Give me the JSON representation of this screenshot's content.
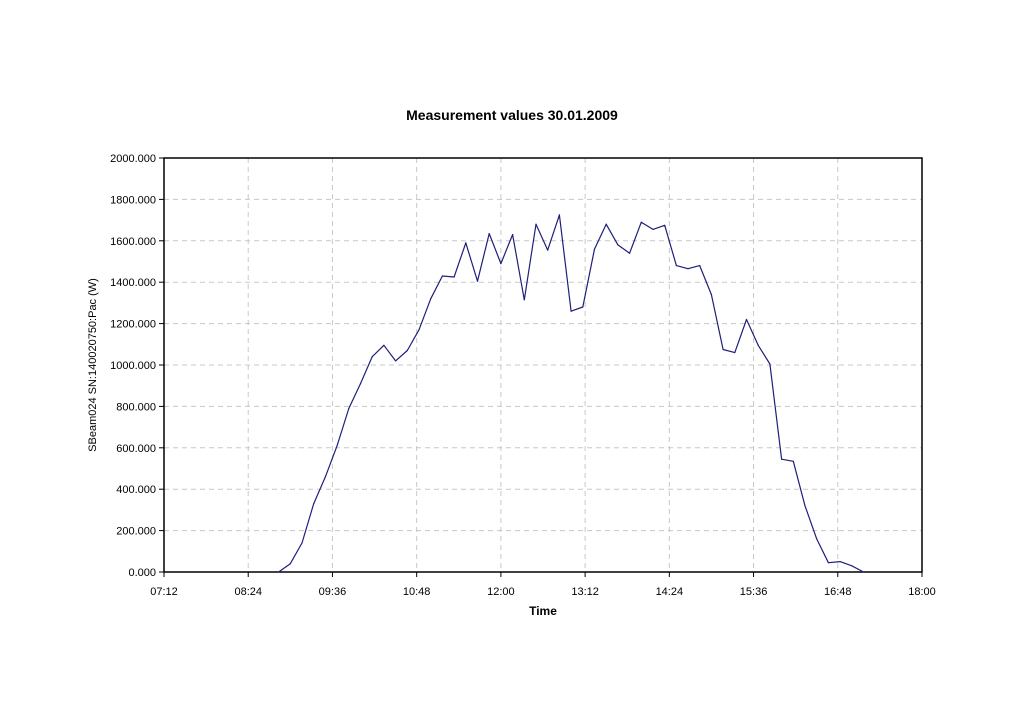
{
  "chart_data": {
    "type": "line",
    "title": "Measurement values 30.01.2009",
    "xlabel": "Time",
    "ylabel": "SBeam024 SN:140020750:Pac (W)",
    "xlim": [
      "07:12",
      "18:00"
    ],
    "ylim": [
      0,
      2000
    ],
    "x_ticks": [
      "07:12",
      "08:24",
      "09:36",
      "10:48",
      "12:00",
      "13:12",
      "14:24",
      "15:36",
      "16:48",
      "18:00"
    ],
    "y_ticks": [
      "0.000",
      "200.000",
      "400.000",
      "600.000",
      "800.000",
      "1000.000",
      "1200.000",
      "1400.000",
      "1600.000",
      "1800.000",
      "2000.000"
    ],
    "grid": true,
    "line_color": "#1f1f7a",
    "series": [
      {
        "x": [
          "08:50",
          "09:00",
          "09:10",
          "09:20",
          "09:30",
          "09:40",
          "09:50",
          "10:00",
          "10:10",
          "10:20",
          "10:30",
          "10:40",
          "10:50",
          "11:00",
          "11:10",
          "11:20",
          "11:30",
          "11:40",
          "11:50",
          "12:00",
          "12:10",
          "12:20",
          "12:30",
          "12:40",
          "12:50",
          "13:00",
          "13:10",
          "13:20",
          "13:30",
          "13:40",
          "13:50",
          "14:00",
          "14:10",
          "14:20",
          "14:30",
          "14:40",
          "14:50",
          "15:00",
          "15:10",
          "15:20",
          "15:30",
          "15:40",
          "15:50",
          "16:00",
          "16:10",
          "16:20",
          "16:30",
          "16:40",
          "16:50",
          "17:00",
          "17:10"
        ],
        "values": [
          0,
          40,
          140,
          330,
          460,
          610,
          790,
          910,
          1040,
          1095,
          1020,
          1070,
          1170,
          1320,
          1430,
          1425,
          1590,
          1405,
          1635,
          1490,
          1630,
          1315,
          1680,
          1555,
          1725,
          1260,
          1280,
          1560,
          1680,
          1580,
          1540,
          1690,
          1655,
          1675,
          1480,
          1465,
          1480,
          1340,
          1075,
          1060,
          1220,
          1095,
          1005,
          545,
          535,
          320,
          160,
          45,
          50,
          30,
          0
        ]
      }
    ]
  }
}
